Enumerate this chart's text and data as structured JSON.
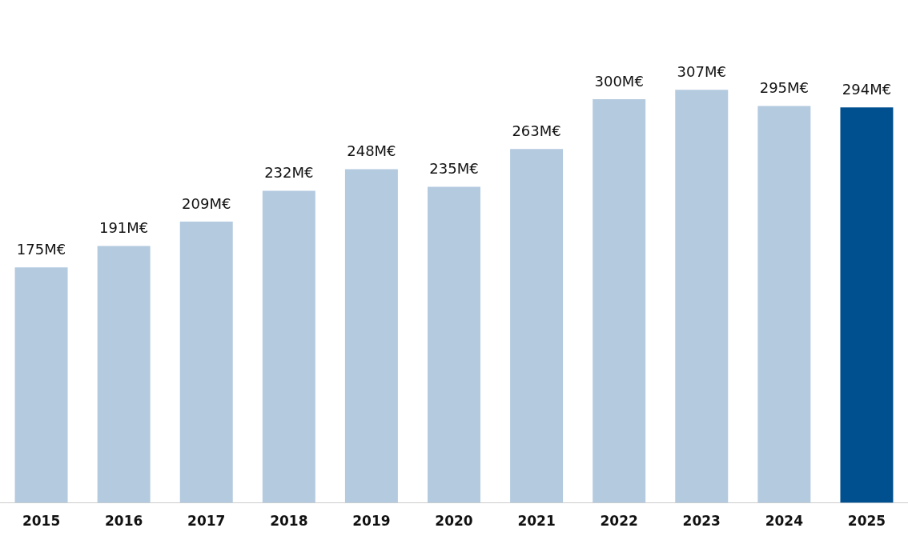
{
  "chart_data": {
    "type": "bar",
    "categories": [
      "2015",
      "2016",
      "2017",
      "2018",
      "2019",
      "2020",
      "2021",
      "2022",
      "2023",
      "2024",
      "2025"
    ],
    "values": [
      175,
      191,
      209,
      232,
      248,
      235,
      263,
      300,
      307,
      295,
      294
    ],
    "colors": [
      "#b3cadf",
      "#b3cadf",
      "#b3cadf",
      "#b3cadf",
      "#b3cadf",
      "#b3cadf",
      "#b3cadf",
      "#b3cadf",
      "#b3cadf",
      "#b3cadf",
      "#00508f"
    ],
    "value_labels": [
      "175M€",
      "191M€",
      "209M€",
      "232M€",
      "248M€",
      "235M€",
      "263M€",
      "300M€",
      "307M€",
      "295M€",
      "294M€"
    ],
    "grid": false,
    "legend": false
  }
}
